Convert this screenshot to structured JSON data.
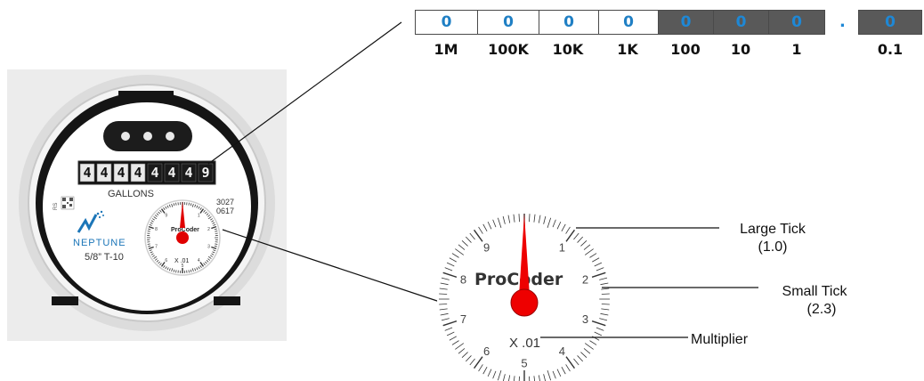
{
  "odometer": {
    "digits": [
      {
        "value": "0",
        "place": "1M",
        "style": "white"
      },
      {
        "value": "0",
        "place": "100K",
        "style": "white"
      },
      {
        "value": "0",
        "place": "10K",
        "style": "white"
      },
      {
        "value": "0",
        "place": "1K",
        "style": "white"
      },
      {
        "value": "0",
        "place": "100",
        "style": "dark"
      },
      {
        "value": "0",
        "place": "10",
        "style": "dark"
      },
      {
        "value": "0",
        "place": "1",
        "style": "dark"
      },
      {
        "value": "0",
        "place": "0.1",
        "style": "dark"
      }
    ],
    "decimal_point": "."
  },
  "meter": {
    "register_digits": [
      "4",
      "4",
      "4",
      "4",
      "4",
      "4",
      "4",
      "9"
    ],
    "unit_label": "GALLONS",
    "serial_top": "3027",
    "serial_bottom": "0617",
    "brand": "NEPTUNE",
    "model": "5/8”  T-10",
    "rs_label": "RS"
  },
  "dial": {
    "brand": "ProCoder",
    "multiplier": "X .01",
    "numbers": [
      "1",
      "2",
      "3",
      "4",
      "5",
      "6",
      "7",
      "8",
      "9"
    ],
    "needle_color": "#e00000"
  },
  "callouts": {
    "large_tick": {
      "title": "Large Tick",
      "value": "(1.0)"
    },
    "small_tick": {
      "title": "Small Tick",
      "value": "(2.3)"
    },
    "multiplier": {
      "title": "Multiplier"
    }
  }
}
